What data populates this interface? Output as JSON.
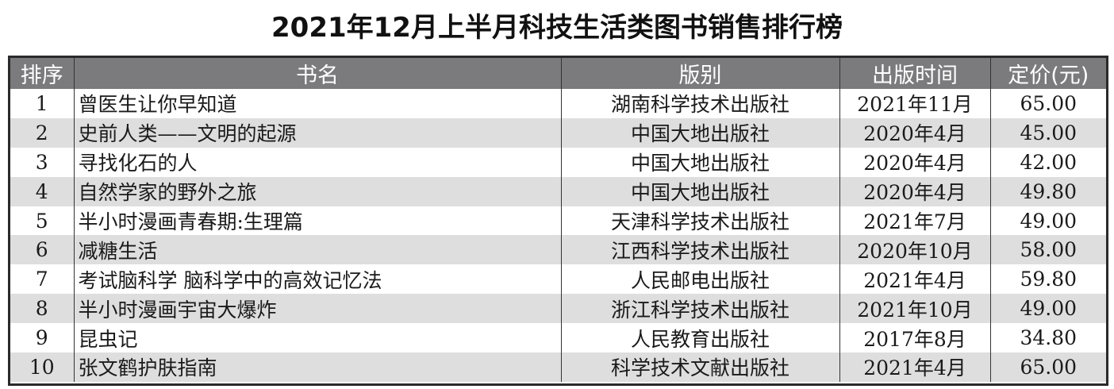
{
  "title": "2021年12月上半月科技生活类图书销售排行榜",
  "columns": [
    "排序",
    "书名",
    "版别",
    "出版时间",
    "定价(元)"
  ],
  "rows": [
    {
      "rank": "1",
      "name": "曾医生让你早知道",
      "publisher": "湖南科学技术出版社",
      "date": "2021年11月",
      "price": "65.00"
    },
    {
      "rank": "2",
      "name": "史前人类——文明的起源",
      "publisher": "中国大地出版社",
      "date": "2020年4月",
      "price": "45.00"
    },
    {
      "rank": "3",
      "name": "寻找化石的人",
      "publisher": "中国大地出版社",
      "date": "2020年4月",
      "price": "42.00"
    },
    {
      "rank": "4",
      "name": "自然学家的野外之旅",
      "publisher": "中国大地出版社",
      "date": "2020年4月",
      "price": "49.80"
    },
    {
      "rank": "5",
      "name": "半小时漫画青春期:生理篇",
      "publisher": "天津科学技术出版社",
      "date": "2021年7月",
      "price": "49.00"
    },
    {
      "rank": "6",
      "name": "减糖生活",
      "publisher": "江西科学技术出版社",
      "date": "2020年10月",
      "price": "58.00"
    },
    {
      "rank": "7",
      "name": "考试脑科学 脑科学中的高效记忆法",
      "publisher": "人民邮电出版社",
      "date": "2021年4月",
      "price": "59.80"
    },
    {
      "rank": "8",
      "name": "半小时漫画宇宙大爆炸",
      "publisher": "浙江科学技术出版社",
      "date": "2021年10月",
      "price": "49.00"
    },
    {
      "rank": "9",
      "name": "昆虫记",
      "publisher": "人民教育出版社",
      "date": "2017年8月",
      "price": "34.80"
    },
    {
      "rank": "10",
      "name": "张文鹤护肤指南",
      "publisher": "科学技术文献出版社",
      "date": "2021年4月",
      "price": "65.00"
    }
  ],
  "colors": {
    "header_bg": "#7b7b7d",
    "stripe": "#dedede",
    "border": "#2a2a2a"
  }
}
